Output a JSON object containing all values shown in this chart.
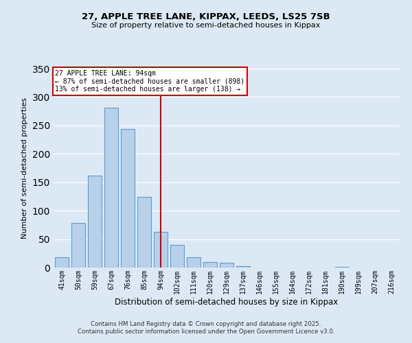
{
  "title1": "27, APPLE TREE LANE, KIPPAX, LEEDS, LS25 7SB",
  "title2": "Size of property relative to semi-detached houses in Kippax",
  "xlabel": "Distribution of semi-detached houses by size in Kippax",
  "ylabel": "Number of semi-detached properties",
  "bar_labels": [
    "41sqm",
    "50sqm",
    "59sqm",
    "67sqm",
    "76sqm",
    "85sqm",
    "94sqm",
    "102sqm",
    "111sqm",
    "120sqm",
    "129sqm",
    "137sqm",
    "146sqm",
    "155sqm",
    "164sqm",
    "172sqm",
    "181sqm",
    "190sqm",
    "199sqm",
    "207sqm",
    "216sqm"
  ],
  "bar_values": [
    18,
    79,
    162,
    281,
    244,
    124,
    63,
    40,
    18,
    10,
    8,
    2,
    0,
    0,
    0,
    0,
    0,
    1,
    0,
    0,
    0
  ],
  "bar_color": "#b8d0e8",
  "bar_edge_color": "#5b9bd5",
  "vline_x": 6,
  "vline_color": "#cc0000",
  "annotation_title": "27 APPLE TREE LANE: 94sqm",
  "annotation_line1": "← 87% of semi-detached houses are smaller (898)",
  "annotation_line2": "13% of semi-detached houses are larger (138) →",
  "annotation_box_color": "#cc0000",
  "ylim": [
    0,
    350
  ],
  "yticks": [
    0,
    50,
    100,
    150,
    200,
    250,
    300,
    350
  ],
  "background_color": "#dce9f5",
  "footer1": "Contains HM Land Registry data © Crown copyright and database right 2025.",
  "footer2": "Contains public sector information licensed under the Open Government Licence v3.0."
}
